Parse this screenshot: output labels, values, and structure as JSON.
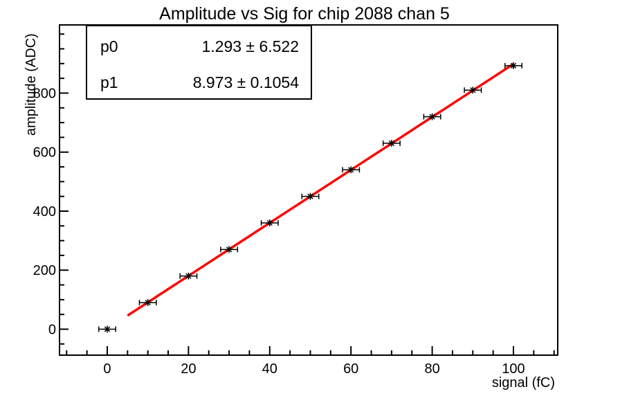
{
  "chart_data": {
    "type": "scatter",
    "title": "Amplitude vs Sig for chip 2088 chan 5",
    "xlabel": "signal (fC)",
    "ylabel": "amplitude (ADC)",
    "x": [
      0,
      10,
      20,
      30,
      40,
      50,
      60,
      70,
      80,
      90,
      100
    ],
    "y": [
      0,
      90,
      180,
      270,
      360,
      450,
      540,
      630,
      720,
      810,
      893
    ],
    "xerr": 1.4,
    "xlim": [
      -11.75,
      110.9
    ],
    "ylim": [
      -88,
      1031
    ],
    "xticks": {
      "major_step": 20,
      "minor_step": 5,
      "labels": [
        0,
        20,
        40,
        60,
        80,
        100
      ]
    },
    "yticks": {
      "major_step": 200,
      "minor_step": 50,
      "labels": [
        0,
        200,
        400,
        600,
        800
      ]
    },
    "grid": false,
    "legend_position": "none",
    "marker": "asterisk",
    "fit": {
      "type": "linear",
      "p0": 1.293,
      "p1": 8.973,
      "range": [
        5,
        100
      ],
      "color": "#ff0000"
    },
    "colors": {
      "marker": "#000000",
      "axis": "#000000",
      "background": "#ffffff"
    }
  },
  "stats_box": {
    "rows": [
      {
        "name": "p0",
        "value": "1.293 ± 6.522"
      },
      {
        "name": "p1",
        "value": "8.973 ± 0.1054"
      }
    ]
  }
}
